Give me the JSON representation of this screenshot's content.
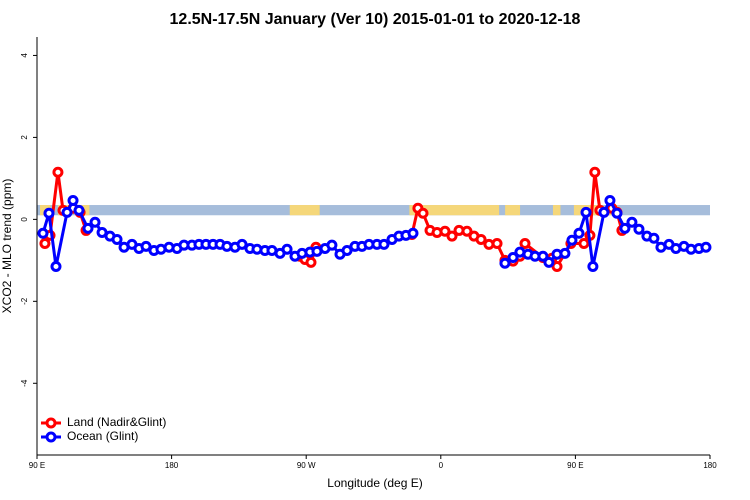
{
  "chart_data": {
    "type": "line",
    "title": "12.5N-17.5N January (Ver 10)   2015-01-01 to 2020-12-18",
    "xlabel": "Longitude (deg E)",
    "ylabel": "XCO2 - MLO trend (ppm)",
    "xlim": [
      90,
      540
    ],
    "ylim": [
      -5.75,
      4.45
    ],
    "xticks": [
      {
        "value": 90,
        "label": "90 E"
      },
      {
        "value": 180,
        "label": "180"
      },
      {
        "value": 270,
        "label": "90 W"
      },
      {
        "value": 360,
        "label": "0"
      },
      {
        "value": 450,
        "label": "90 E"
      },
      {
        "value": 540,
        "label": "180"
      }
    ],
    "yticks": [
      -4,
      -2,
      0,
      2,
      4
    ],
    "legend": "bottom-left",
    "mask": {
      "ylim": [
        0.1,
        0.35
      ],
      "ocean_color": "#a6bddb",
      "land_color": "#f5d77a",
      "land": [
        [
          92,
          99
        ],
        [
          104,
          112
        ],
        [
          119,
          125
        ],
        [
          259,
          279
        ],
        [
          339,
          399
        ],
        [
          403,
          413
        ],
        [
          435,
          440
        ],
        [
          449,
          466
        ],
        [
          471,
          478
        ]
      ]
    },
    "series": [
      {
        "name": "Land (Nadir&Glint)",
        "color": "#ff0000",
        "x": [
          95.3,
          98.7,
          104.0,
          107.4,
          114.1,
          118.8,
          122.8,
          200,
          265.8,
          269.2,
          273.2,
          276.5,
          345,
          340.7,
          344.7,
          348.1,
          352.8,
          357.5,
          362.8,
          367.5,
          372.2,
          377.5,
          382.2,
          386.9,
          392.2,
          397.6,
          402.9,
          408.3,
          412.9,
          416.3,
          428.3,
          434.3,
          437.7,
          447.0,
          455.7,
          459.7,
          463.0,
          466.4,
          474.4,
          477.8,
          481.1
        ],
        "values": [
          -0.59,
          -0.39,
          1.15,
          0.22,
          0.27,
          0.17,
          -0.27,
          null,
          -0.9,
          -0.98,
          -1.05,
          -0.68,
          null,
          -0.37,
          0.27,
          0.15,
          -0.27,
          -0.32,
          -0.29,
          -0.41,
          -0.27,
          -0.29,
          -0.41,
          -0.49,
          -0.61,
          -0.59,
          -1.0,
          -1.02,
          -0.9,
          -0.59,
          -0.93,
          -0.95,
          -1.15,
          -0.59,
          -0.59,
          -0.39,
          1.15,
          0.22,
          0.27,
          0.17,
          -0.27
        ]
      },
      {
        "name": "Ocean (Glint)",
        "color": "#0000ff",
        "x": [
          94.0,
          98.0,
          102.7,
          110.1,
          114.1,
          118.1,
          124.1,
          128.8,
          133.5,
          138.8,
          143.5,
          148.2,
          153.5,
          158.2,
          162.9,
          168.2,
          172.9,
          178.3,
          183.6,
          188.3,
          193.6,
          198.3,
          203.0,
          207.7,
          212.4,
          217.0,
          222.4,
          227.1,
          232.4,
          237.1,
          242.4,
          247.1,
          252.5,
          257.2,
          262.5,
          267.2,
          272.5,
          277.2,
          282.6,
          287.2,
          292.6,
          297.3,
          302.6,
          307.3,
          312.0,
          317.3,
          322.0,
          327.4,
          332.0,
          336.7,
          341.4,
          372,
          402.9,
          408.3,
          412.9,
          418.3,
          423.0,
          428.3,
          432.3,
          437.7,
          443.0,
          447.7,
          452.4,
          457.1,
          461.7,
          469.1,
          473.1,
          477.8,
          483.1,
          487.8,
          492.5,
          497.8,
          502.5,
          507.2,
          512.6,
          517.2,
          522.6,
          527.3,
          532.6,
          537.3
        ],
        "values": [
          -0.34,
          0.15,
          -1.15,
          0.17,
          0.46,
          0.22,
          -0.22,
          -0.07,
          -0.32,
          -0.41,
          -0.49,
          -0.68,
          -0.61,
          -0.71,
          -0.66,
          -0.76,
          -0.73,
          -0.68,
          -0.71,
          -0.63,
          -0.63,
          -0.61,
          -0.61,
          -0.61,
          -0.61,
          -0.66,
          -0.68,
          -0.61,
          -0.71,
          -0.73,
          -0.76,
          -0.76,
          -0.83,
          -0.73,
          -0.9,
          -0.83,
          -0.8,
          -0.78,
          -0.71,
          -0.63,
          -0.85,
          -0.76,
          -0.66,
          -0.66,
          -0.61,
          -0.61,
          -0.61,
          -0.49,
          -0.41,
          -0.39,
          -0.34,
          null,
          -1.07,
          -0.93,
          -0.8,
          -0.85,
          -0.9,
          -0.9,
          -1.05,
          -0.85,
          -0.83,
          -0.51,
          -0.34,
          0.17,
          -1.15,
          0.17,
          0.46,
          0.15,
          -0.22,
          -0.07,
          -0.24,
          -0.41,
          -0.46,
          -0.68,
          -0.61,
          -0.71,
          -0.66,
          -0.73,
          -0.71,
          -0.68
        ]
      }
    ]
  }
}
